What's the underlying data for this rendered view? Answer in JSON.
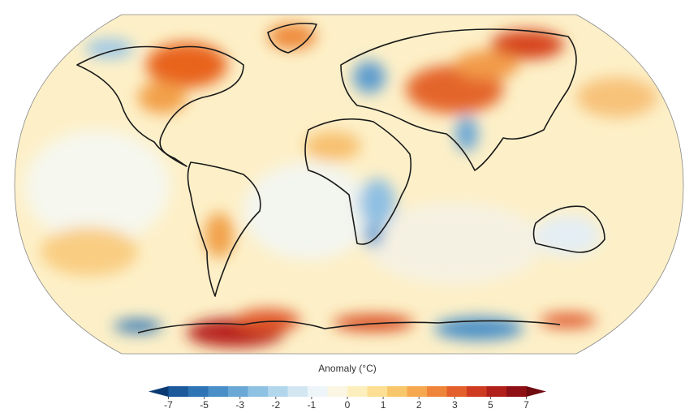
{
  "colorbar": {
    "label": "Anomaly (°C)",
    "ticks": [
      -7,
      -5,
      -3,
      -2,
      -1,
      0,
      1,
      2,
      3,
      5,
      7
    ],
    "colors": [
      "#0b3a73",
      "#1d5a9c",
      "#2f74b4",
      "#4a8fc7",
      "#6aa9d6",
      "#8ec2e3",
      "#b2d6ec",
      "#d3e7f2",
      "#eef5f8",
      "#fbf6e4",
      "#fdeebe",
      "#fcdf93",
      "#f9c76b",
      "#f5a84f",
      "#ef853a",
      "#e35f2b",
      "#cf3b21",
      "#b11f1a",
      "#8e1014",
      "#6e0a10"
    ]
  }
}
